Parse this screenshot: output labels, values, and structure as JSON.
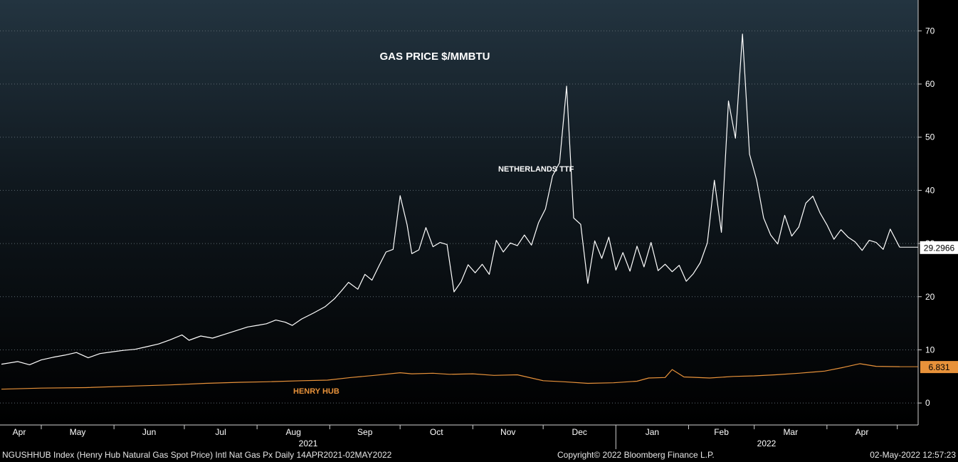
{
  "chart_data": {
    "type": "line",
    "title": "GAS PRICE $/MMBTU",
    "ylim": [
      -4,
      75
    ],
    "yticks": [
      0,
      10,
      20,
      30,
      40,
      50,
      60,
      70
    ],
    "month_labels": [
      "Apr",
      "May",
      "Jun",
      "Jul",
      "Aug",
      "Sep",
      "Oct",
      "Nov",
      "Dec",
      "Jan",
      "Feb",
      "Mar",
      "Apr"
    ],
    "year_labels": [
      "2021",
      "2022"
    ],
    "x_range": [
      "2021-04-14",
      "2022-05-02"
    ],
    "grid": true,
    "series": [
      {
        "name": "NETHERLANDS TTF",
        "color": "#ffffff",
        "last_value_label": "29.2966",
        "x": [
          "2021-04-14",
          "2021-04-21",
          "2021-04-26",
          "2021-05-01",
          "2021-05-06",
          "2021-05-11",
          "2021-05-16",
          "2021-05-21",
          "2021-05-26",
          "2021-05-31",
          "2021-06-05",
          "2021-06-10",
          "2021-06-15",
          "2021-06-20",
          "2021-06-25",
          "2021-06-30",
          "2021-07-03",
          "2021-07-08",
          "2021-07-13",
          "2021-07-18",
          "2021-07-23",
          "2021-07-28",
          "2021-08-01",
          "2021-08-05",
          "2021-08-09",
          "2021-08-13",
          "2021-08-16",
          "2021-08-20",
          "2021-08-25",
          "2021-08-30",
          "2021-09-03",
          "2021-09-06",
          "2021-09-09",
          "2021-09-13",
          "2021-09-16",
          "2021-09-19",
          "2021-09-22",
          "2021-09-25",
          "2021-09-28",
          "2021-10-01",
          "2021-10-04",
          "2021-10-06",
          "2021-10-09",
          "2021-10-12",
          "2021-10-15",
          "2021-10-18",
          "2021-10-21",
          "2021-10-24",
          "2021-10-27",
          "2021-10-30",
          "2021-11-02",
          "2021-11-05",
          "2021-11-08",
          "2021-11-11",
          "2021-11-14",
          "2021-11-17",
          "2021-11-20",
          "2021-11-23",
          "2021-11-26",
          "2021-11-29",
          "2021-12-02",
          "2021-12-05",
          "2021-12-08",
          "2021-12-11",
          "2021-12-14",
          "2021-12-17",
          "2021-12-20",
          "2021-12-23",
          "2021-12-26",
          "2021-12-29",
          "2022-01-01",
          "2022-01-04",
          "2022-01-07",
          "2022-01-10",
          "2022-01-13",
          "2022-01-16",
          "2022-01-19",
          "2022-01-22",
          "2022-01-25",
          "2022-01-28",
          "2022-01-31",
          "2022-02-03",
          "2022-02-06",
          "2022-02-09",
          "2022-02-12",
          "2022-02-15",
          "2022-02-18",
          "2022-02-21",
          "2022-02-24",
          "2022-02-27",
          "2022-03-02",
          "2022-03-05",
          "2022-03-08",
          "2022-03-11",
          "2022-03-14",
          "2022-03-17",
          "2022-03-20",
          "2022-03-23",
          "2022-03-26",
          "2022-03-29",
          "2022-04-01",
          "2022-04-04",
          "2022-04-07",
          "2022-04-10",
          "2022-04-13",
          "2022-04-16",
          "2022-04-19",
          "2022-04-22",
          "2022-04-25",
          "2022-04-28",
          "2022-05-02"
        ],
        "values": [
          7.3,
          7.8,
          7.2,
          8.1,
          8.6,
          9.0,
          9.5,
          8.5,
          9.3,
          9.6,
          9.9,
          10.1,
          10.6,
          11.1,
          11.9,
          12.8,
          11.8,
          12.6,
          12.2,
          12.9,
          13.6,
          14.3,
          14.6,
          14.9,
          15.6,
          15.2,
          14.6,
          15.8,
          16.9,
          18.1,
          19.6,
          21.1,
          22.7,
          21.4,
          24.2,
          23.1,
          25.8,
          28.4,
          28.9,
          39.0,
          33.5,
          28.1,
          28.8,
          33.0,
          29.4,
          30.2,
          29.8,
          20.9,
          22.8,
          26.0,
          24.5,
          26.1,
          24.2,
          30.6,
          28.4,
          30.1,
          29.6,
          31.6,
          29.7,
          33.9,
          36.5,
          42.7,
          45.2,
          59.6,
          34.8,
          33.6,
          22.5,
          30.5,
          27.2,
          31.2,
          25.0,
          28.3,
          24.8,
          29.5,
          25.6,
          30.2,
          24.9,
          26.1,
          24.7,
          25.9,
          22.9,
          24.3,
          26.4,
          30.1,
          41.9,
          32.1,
          56.8,
          49.8,
          69.4,
          46.8,
          42.0,
          34.8,
          31.6,
          29.9,
          35.3,
          31.4,
          33.1,
          37.6,
          38.9,
          35.8,
          33.5,
          30.8,
          32.6,
          31.2,
          30.3,
          28.7,
          30.6,
          30.2,
          28.9,
          32.7,
          29.3
        ]
      },
      {
        "name": "HENRY HUB",
        "color": "#e8923a",
        "last_value_label": "6.831",
        "x": [
          "2021-04-14",
          "2021-05-01",
          "2021-05-20",
          "2021-06-10",
          "2021-06-25",
          "2021-07-10",
          "2021-07-25",
          "2021-08-05",
          "2021-08-20",
          "2021-08-31",
          "2021-09-10",
          "2021-09-20",
          "2021-10-01",
          "2021-10-06",
          "2021-10-15",
          "2021-10-22",
          "2021-11-01",
          "2021-11-10",
          "2021-11-20",
          "2021-12-01",
          "2021-12-10",
          "2021-12-20",
          "2021-12-31",
          "2022-01-10",
          "2022-01-15",
          "2022-01-22",
          "2022-01-25",
          "2022-01-30",
          "2022-02-10",
          "2022-02-20",
          "2022-03-01",
          "2022-03-10",
          "2022-03-20",
          "2022-03-31",
          "2022-04-08",
          "2022-04-15",
          "2022-04-22",
          "2022-05-02"
        ],
        "values": [
          2.6,
          2.8,
          2.9,
          3.2,
          3.4,
          3.7,
          3.9,
          4.0,
          4.2,
          4.3,
          4.8,
          5.2,
          5.7,
          5.5,
          5.6,
          5.4,
          5.5,
          5.2,
          5.3,
          4.2,
          4.0,
          3.7,
          3.8,
          4.1,
          4.7,
          4.8,
          6.3,
          4.9,
          4.7,
          5.0,
          5.1,
          5.3,
          5.6,
          6.0,
          6.7,
          7.4,
          6.9,
          6.831
        ]
      }
    ]
  },
  "footer": {
    "left": "NGUSHHUB Index (Henry Hub Natural Gas Spot Price) Intl Nat Gas Px  Daily 14APR2021-02MAY2022",
    "center": "Copyright© 2022 Bloomberg Finance L.P.",
    "right": "02-May-2022 12:57:23"
  }
}
